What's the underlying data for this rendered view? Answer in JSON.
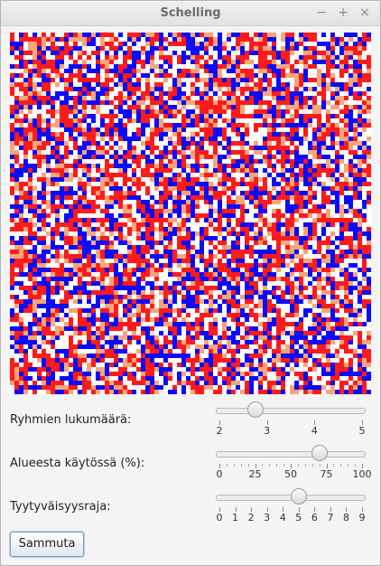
{
  "window": {
    "title": "Schelling",
    "minimize_glyph": "−",
    "maximize_glyph": "+",
    "close_glyph": "×"
  },
  "grid": {
    "columns": 80,
    "rows": 80,
    "colors": {
      "empty": "#ffffff",
      "group1": "#ff1a1a",
      "group2": "#0a0aff",
      "group3": "#f7a67a"
    }
  },
  "controls": {
    "groups": {
      "label": "Ryhmien lukumäärä:",
      "min": 2,
      "max": 5,
      "value": 2.75,
      "major_ticks": [
        "2",
        "3",
        "4",
        "5"
      ],
      "minor_per_major": 0
    },
    "occupancy": {
      "label": "Alueesta käytössä (%):",
      "min": 0,
      "max": 100,
      "value": 70,
      "major_ticks": [
        "0",
        "25",
        "50",
        "75",
        "100"
      ],
      "minor_per_major": 4
    },
    "threshold": {
      "label": "Tyytyväisyysraja:",
      "min": 0,
      "max": 9,
      "value": 5,
      "major_ticks": [
        "0",
        "1",
        "2",
        "3",
        "4",
        "5",
        "6",
        "7",
        "8",
        "9"
      ],
      "minor_per_major": 0
    }
  },
  "button": {
    "label": "Sammuta"
  }
}
